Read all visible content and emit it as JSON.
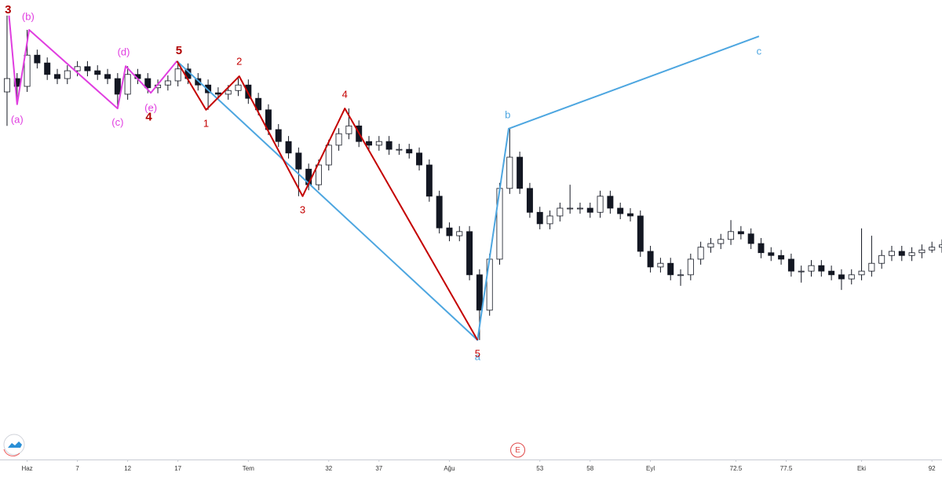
{
  "chart_data": {
    "type": "candlestick",
    "xlim": [
      -0.7,
      93
    ],
    "ylim": [
      0,
      100
    ],
    "xticks": [
      {
        "value": 2,
        "label": "Haz"
      },
      7,
      12,
      17,
      {
        "value": 24,
        "label": "Tem"
      },
      32,
      37,
      {
        "value": 44,
        "label": "Ağu"
      },
      53,
      58,
      {
        "value": 64,
        "label": "Eyl"
      },
      72.5,
      77.5,
      {
        "value": 85,
        "label": "Eki"
      },
      92
    ],
    "up_color": "#ffffff",
    "down_color": "#131722",
    "wick_color": "#131722",
    "open": [
      80.0,
      82.9,
      81.2,
      88.0,
      86.3,
      83.8,
      82.9,
      84.6,
      85.5,
      84.6,
      83.8,
      82.9,
      79.5,
      83.8,
      82.9,
      80.9,
      81.5,
      82.4,
      85.0,
      82.9,
      81.5,
      79.8,
      79.5,
      80.3,
      81.5,
      78.6,
      76.1,
      71.8,
      69.2,
      66.7,
      63.2,
      59.8,
      64.1,
      68.4,
      70.9,
      72.6,
      69.2,
      68.4,
      69.2,
      67.5,
      67.5,
      66.7,
      64.1,
      57.3,
      50.4,
      48.7,
      49.6,
      40.2,
      32.5,
      43.6,
      59.0,
      65.8,
      59.0,
      53.8,
      51.3,
      53.0,
      54.7,
      54.7,
      54.7,
      53.8,
      57.3,
      54.7,
      53.5,
      53.0,
      45.3,
      41.9,
      42.7,
      40.2,
      40.2,
      43.6,
      46.2,
      47.0,
      47.9,
      49.6,
      49.1,
      47.0,
      45.0,
      44.4,
      43.6,
      41.0,
      41.0,
      42.2,
      41.0,
      40.2,
      39.3,
      40.2,
      41.0,
      42.7,
      44.4,
      45.3,
      44.4,
      45.0,
      45.6,
      46.2
    ],
    "high": [
      96.6,
      84.1,
      93.5,
      89.2,
      87.5,
      85.0,
      85.8,
      86.7,
      86.7,
      85.8,
      85.0,
      84.1,
      85.6,
      85.0,
      84.1,
      82.7,
      83.6,
      86.7,
      86.2,
      84.1,
      82.7,
      81.0,
      81.5,
      83.4,
      82.7,
      79.8,
      77.3,
      73.0,
      70.4,
      67.9,
      64.4,
      65.3,
      69.6,
      72.1,
      76.4,
      73.8,
      70.4,
      70.4,
      70.4,
      68.7,
      68.7,
      67.9,
      65.3,
      58.5,
      51.6,
      50.8,
      50.8,
      41.4,
      44.8,
      60.2,
      72.0,
      67.0,
      60.2,
      55.0,
      54.2,
      55.9,
      59.8,
      55.9,
      55.9,
      58.5,
      58.5,
      55.9,
      54.7,
      54.2,
      46.5,
      43.9,
      43.9,
      41.4,
      44.8,
      47.4,
      48.2,
      49.1,
      52.1,
      50.8,
      50.3,
      48.2,
      46.2,
      45.6,
      44.8,
      42.2,
      43.4,
      43.4,
      42.2,
      41.4,
      41.4,
      50.3,
      48.7,
      45.6,
      46.5,
      46.5,
      46.2,
      46.8,
      47.4,
      47.9
    ],
    "low": [
      72.6,
      77.3,
      80.0,
      85.1,
      82.6,
      81.7,
      81.7,
      83.4,
      83.4,
      82.6,
      81.7,
      76.4,
      78.3,
      81.7,
      79.7,
      79.7,
      80.3,
      81.2,
      81.7,
      80.3,
      76.1,
      78.3,
      78.3,
      79.1,
      77.4,
      74.9,
      70.6,
      68.0,
      65.5,
      57.3,
      58.6,
      58.6,
      62.9,
      67.2,
      69.7,
      68.0,
      67.2,
      67.2,
      66.3,
      66.3,
      65.5,
      62.9,
      56.1,
      49.2,
      47.5,
      47.5,
      39.0,
      26.0,
      31.3,
      42.4,
      57.8,
      57.8,
      52.6,
      50.1,
      50.1,
      51.8,
      53.5,
      53.5,
      52.6,
      52.6,
      53.5,
      52.3,
      51.8,
      44.1,
      40.7,
      40.7,
      39.0,
      37.8,
      39.0,
      42.4,
      45.0,
      45.8,
      46.7,
      47.9,
      45.8,
      43.8,
      43.2,
      42.4,
      39.8,
      38.5,
      39.8,
      39.8,
      39.0,
      36.9,
      38.1,
      39.0,
      39.8,
      41.5,
      43.2,
      43.2,
      43.2,
      43.8,
      45.0,
      45.0
    ],
    "close": [
      82.9,
      81.2,
      88.0,
      86.3,
      83.8,
      82.9,
      84.6,
      85.5,
      84.6,
      83.8,
      82.9,
      79.5,
      83.8,
      82.9,
      80.9,
      81.5,
      82.4,
      85.0,
      82.9,
      81.5,
      79.8,
      79.5,
      80.3,
      81.5,
      78.6,
      76.1,
      71.8,
      69.2,
      66.7,
      63.2,
      59.8,
      64.1,
      68.4,
      70.9,
      72.6,
      69.2,
      68.4,
      69.2,
      67.5,
      67.5,
      66.7,
      64.1,
      57.3,
      50.4,
      48.7,
      49.6,
      40.2,
      32.5,
      43.6,
      59.0,
      65.8,
      59.0,
      53.8,
      51.3,
      53.0,
      54.7,
      54.7,
      54.7,
      53.8,
      57.3,
      54.7,
      53.5,
      53.0,
      45.3,
      41.9,
      42.7,
      40.2,
      40.2,
      43.6,
      46.2,
      47.0,
      47.9,
      49.6,
      49.1,
      47.0,
      45.0,
      44.4,
      43.6,
      41.0,
      41.0,
      42.2,
      41.0,
      40.2,
      39.3,
      40.2,
      41.0,
      42.7,
      44.4,
      45.3,
      44.4,
      45.0,
      45.6,
      46.2,
      46.7
    ],
    "waves": [
      {
        "color": "#e03ee0",
        "x": [
          0.2,
          1.0,
          2.2,
          11.0,
          11.8,
          14.3,
          16.9
        ],
        "y": [
          96.6,
          77.3,
          93.5,
          76.4,
          85.6,
          79.8,
          86.7
        ]
      },
      {
        "color": "#4da6e0",
        "x": [
          16.9,
          46.8,
          49.9,
          74.8
        ],
        "y": [
          86.7,
          26.0,
          72.0,
          92.1
        ]
      },
      {
        "color": "#c40000",
        "x": [
          16.9,
          19.8,
          23.1,
          29.4,
          33.6,
          46.8
        ],
        "y": [
          86.7,
          76.1,
          83.4,
          57.3,
          76.4,
          26.0
        ]
      }
    ],
    "annotations": [
      {
        "text": "3",
        "x": 0.1,
        "y": 97.8,
        "color": "#b00000",
        "bold": true
      },
      {
        "text": "(b)",
        "x": 2.1,
        "y": 96.2,
        "color": "#e03ee0",
        "bold": false
      },
      {
        "text": "(a)",
        "x": 1.0,
        "y": 73.8,
        "color": "#e03ee0",
        "bold": false
      },
      {
        "text": "(c)",
        "x": 11.0,
        "y": 73.2,
        "color": "#e03ee0",
        "bold": false
      },
      {
        "text": "(d)",
        "x": 11.6,
        "y": 88.5,
        "color": "#e03ee0",
        "bold": false
      },
      {
        "text": "(e)",
        "x": 14.3,
        "y": 76.4,
        "color": "#e03ee0",
        "bold": false
      },
      {
        "text": "4",
        "x": 14.1,
        "y": 74.4,
        "color": "#b00000",
        "bold": true
      },
      {
        "text": "5",
        "x": 17.1,
        "y": 88.9,
        "color": "#b00000",
        "bold": true
      },
      {
        "text": "1",
        "x": 19.8,
        "y": 73.0,
        "color": "#c40000",
        "bold": false
      },
      {
        "text": "2",
        "x": 23.1,
        "y": 86.5,
        "color": "#c40000",
        "bold": false
      },
      {
        "text": "3",
        "x": 29.4,
        "y": 54.2,
        "color": "#c40000",
        "bold": false
      },
      {
        "text": "4",
        "x": 33.6,
        "y": 79.3,
        "color": "#c40000",
        "bold": false
      },
      {
        "text": "a",
        "x": 46.8,
        "y": 22.2,
        "color": "#4da6e0",
        "bold": false
      },
      {
        "text": "5",
        "x": 46.8,
        "y": 22.9,
        "color": "#c40000",
        "bold": false
      },
      {
        "text": "b",
        "x": 49.8,
        "y": 74.9,
        "color": "#4da6e0",
        "bold": false
      },
      {
        "text": "c",
        "x": 74.8,
        "y": 88.7,
        "color": "#4da6e0",
        "bold": false
      }
    ],
    "event_marker": {
      "text": "E",
      "x": 50.8
    }
  }
}
